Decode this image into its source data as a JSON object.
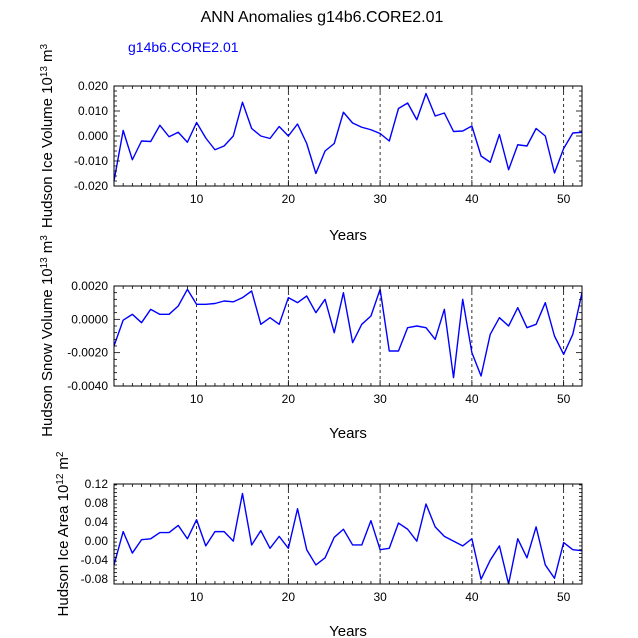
{
  "title": "ANN Anomalies g14b6.CORE2.01",
  "case_label": "g14b6.CORE2.01",
  "colors": {
    "series": "#0000ff",
    "axis": "#000000",
    "refline": "#000000"
  },
  "chart_data": [
    {
      "type": "line",
      "ylabel_main": "Hudson Ice Volume 10",
      "ylabel_exp": "13",
      "ylabel_unit": "m",
      "ylabel_unit_exp": "3",
      "xlabel": "Years",
      "xlim": [
        1,
        52
      ],
      "ylim": [
        -0.02,
        0.02
      ],
      "xticks": [
        10,
        20,
        30,
        40,
        50
      ],
      "yticks": [
        -0.02,
        -0.01,
        0.0,
        0.01,
        0.02
      ],
      "ytick_labels": [
        "-0.020",
        "-0.010",
        "0.000",
        "0.010",
        "0.020"
      ],
      "ref_lines": [
        10,
        20,
        30,
        40,
        50
      ],
      "x": [
        1,
        2,
        3,
        4,
        5,
        6,
        7,
        8,
        9,
        10,
        11,
        12,
        13,
        14,
        15,
        16,
        17,
        18,
        19,
        20,
        21,
        22,
        23,
        24,
        25,
        26,
        27,
        28,
        29,
        30,
        31,
        32,
        33,
        34,
        35,
        36,
        37,
        38,
        39,
        40,
        41,
        42,
        43,
        44,
        45,
        46,
        47,
        48,
        49,
        50,
        51,
        52
      ],
      "values": [
        -0.018,
        0.0022,
        -0.0095,
        -0.002,
        -0.0022,
        0.0043,
        -0.0003,
        0.0015,
        -0.0025,
        0.0054,
        -0.0008,
        -0.0055,
        -0.004,
        0.0,
        0.0135,
        0.003,
        0.0,
        -0.001,
        0.0038,
        0.0,
        0.0048,
        -0.003,
        -0.015,
        -0.006,
        -0.003,
        0.0095,
        0.0052,
        0.0035,
        0.0025,
        0.001,
        -0.002,
        0.011,
        0.0132,
        0.0065,
        0.017,
        0.008,
        0.0092,
        0.0018,
        0.002,
        0.004,
        -0.008,
        -0.0105,
        0.0006,
        -0.0135,
        -0.0035,
        -0.004,
        0.003,
        0.0,
        -0.0148,
        -0.005,
        0.0012,
        0.0015
      ]
    },
    {
      "type": "line",
      "ylabel_main": "Hudson Snow Volume 10",
      "ylabel_exp": "13",
      "ylabel_unit": "m",
      "ylabel_unit_exp": "3",
      "xlabel": "Years",
      "xlim": [
        1,
        52
      ],
      "ylim": [
        -0.004,
        0.002
      ],
      "xticks": [
        10,
        20,
        30,
        40,
        50
      ],
      "yticks": [
        -0.004,
        -0.002,
        0.0,
        0.002
      ],
      "ytick_labels": [
        "-0.0040",
        "-0.0020",
        "0.0000",
        "0.0020"
      ],
      "ref_lines": [
        10,
        20,
        30,
        40,
        50
      ],
      "x": [
        1,
        2,
        3,
        4,
        5,
        6,
        7,
        8,
        9,
        10,
        11,
        12,
        13,
        14,
        15,
        16,
        17,
        18,
        19,
        20,
        21,
        22,
        23,
        24,
        25,
        26,
        27,
        28,
        29,
        30,
        31,
        32,
        33,
        34,
        35,
        36,
        37,
        38,
        39,
        40,
        41,
        42,
        43,
        44,
        45,
        46,
        47,
        48,
        49,
        50,
        51,
        52
      ],
      "values": [
        -0.0016,
        -5e-05,
        0.0003,
        -0.0002,
        0.0006,
        0.0003,
        0.0003,
        0.0008,
        0.0018,
        0.0009,
        0.0009,
        0.00095,
        0.0011,
        0.00105,
        0.0013,
        0.0017,
        -0.0003,
        0.0001,
        -0.0003,
        0.0013,
        0.001,
        0.0014,
        0.0004,
        0.0012,
        -0.0008,
        0.0016,
        -0.0014,
        -0.0003,
        0.0002,
        0.0018,
        -0.0019,
        -0.0019,
        -0.0005,
        -0.0004,
        -0.0005,
        -0.0012,
        0.0006,
        -0.0035,
        0.0012,
        -0.002,
        -0.0034,
        -0.0009,
        0.0001,
        -0.0004,
        0.0007,
        -0.0005,
        -0.0003,
        0.001,
        -0.001,
        -0.0021,
        -0.0009,
        0.0016
      ]
    },
    {
      "type": "line",
      "ylabel_main": "Hudson Ice Area 10",
      "ylabel_exp": "12",
      "ylabel_unit": "m",
      "ylabel_unit_exp": "2",
      "xlabel": "Years",
      "xlim": [
        1,
        52
      ],
      "ylim": [
        -0.09,
        0.12
      ],
      "xticks": [
        10,
        20,
        30,
        40,
        50
      ],
      "yticks": [
        -0.08,
        -0.04,
        0.0,
        0.04,
        0.08,
        0.12
      ],
      "ytick_labels": [
        "-0.08",
        "-0.04",
        "0.00",
        "0.04",
        "0.08",
        "0.12"
      ],
      "ref_lines": [
        10,
        20,
        30,
        40,
        50
      ],
      "x": [
        1,
        2,
        3,
        4,
        5,
        6,
        7,
        8,
        9,
        10,
        11,
        12,
        13,
        14,
        15,
        16,
        17,
        18,
        19,
        20,
        21,
        22,
        23,
        24,
        25,
        26,
        27,
        28,
        29,
        30,
        31,
        32,
        33,
        34,
        35,
        36,
        37,
        38,
        39,
        40,
        41,
        42,
        43,
        44,
        45,
        46,
        47,
        48,
        49,
        50,
        51,
        52
      ],
      "values": [
        -0.05,
        0.02,
        -0.025,
        0.003,
        0.005,
        0.018,
        0.018,
        0.033,
        0.005,
        0.045,
        -0.01,
        0.02,
        0.02,
        0.0,
        0.1,
        -0.008,
        0.022,
        -0.015,
        0.01,
        -0.015,
        0.068,
        -0.018,
        -0.05,
        -0.035,
        0.008,
        0.025,
        -0.008,
        -0.008,
        0.043,
        -0.018,
        -0.015,
        0.038,
        0.025,
        0.0,
        0.078,
        0.03,
        0.01,
        0.0,
        -0.01,
        0.005,
        -0.08,
        -0.04,
        -0.01,
        -0.09,
        0.005,
        -0.035,
        0.03,
        -0.05,
        -0.078,
        -0.003,
        -0.018,
        -0.02
      ]
    }
  ]
}
